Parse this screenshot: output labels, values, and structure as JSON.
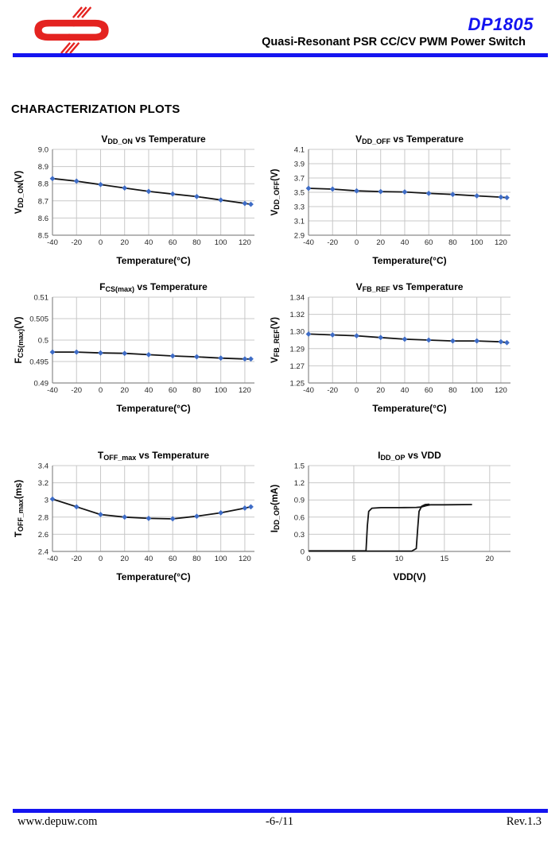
{
  "header": {
    "product": "DP1805",
    "subtitle": "Quasi-Resonant PSR CC/CV PWM Power Switch",
    "accent_color": "#1414f0",
    "logo_color": "#e42320"
  },
  "section_title": "CHARACTERIZATION PLOTS",
  "footer": {
    "website": "www.depuw.com",
    "page": "-6-/11",
    "revision": "Rev.1.3"
  },
  "chart_style": {
    "marker_color": "#3e6cc6",
    "line_color": "#141414",
    "grid_color": "#c8c8c8",
    "axis_color": "#8a8a8a",
    "tick_color": "#262626"
  },
  "chart_data": [
    {
      "type": "line",
      "name": "vdd-on-vs-temperature",
      "title": {
        "pre": "V",
        "sub": "DD_ON",
        "post": " vs Temperature"
      },
      "ylabel": {
        "pre": "V",
        "sub": "DD_ON",
        "post": "(V)"
      },
      "xlabel": "Temperature(°C)",
      "xlim": [
        -40,
        128
      ],
      "xticks": [
        -40,
        -20,
        0,
        20,
        40,
        60,
        80,
        100,
        120
      ],
      "xtick_labels": [
        "-40",
        "-20",
        "0",
        "20",
        "40",
        "60",
        "80",
        "100",
        "120"
      ],
      "yticks": [
        8.5,
        8.6,
        8.7,
        8.8,
        8.9,
        9.0
      ],
      "ytick_labels": [
        "8.5",
        "8.6",
        "8.7",
        "8.8",
        "8.9",
        "9.0"
      ],
      "x": [
        -40,
        -20,
        0,
        20,
        40,
        60,
        80,
        100,
        120,
        125
      ],
      "y": [
        8.83,
        8.815,
        8.795,
        8.775,
        8.755,
        8.74,
        8.725,
        8.705,
        8.685,
        8.68
      ],
      "markers": true
    },
    {
      "type": "line",
      "name": "vdd-off-vs-temperature",
      "title": {
        "pre": "V",
        "sub": "DD_OFF",
        "post": " vs Temperature"
      },
      "ylabel": {
        "pre": "V",
        "sub": "DD_OFF",
        "post": "(V)"
      },
      "xlabel": "Temperature(°C)",
      "xlim": [
        -40,
        128
      ],
      "xticks": [
        -40,
        -20,
        0,
        20,
        40,
        60,
        80,
        100,
        120
      ],
      "xtick_labels": [
        "-40",
        "-20",
        "0",
        "20",
        "40",
        "60",
        "80",
        "100",
        "120"
      ],
      "yticks": [
        2.9,
        3.1,
        3.3,
        3.5,
        3.7,
        3.9,
        4.1
      ],
      "ytick_labels": [
        "2.9",
        "3.1",
        "3.3",
        "3.5",
        "3.7",
        "3.9",
        "4.1"
      ],
      "x": [
        -40,
        -20,
        0,
        20,
        40,
        60,
        80,
        100,
        120,
        125
      ],
      "y": [
        3.555,
        3.545,
        3.52,
        3.51,
        3.505,
        3.485,
        3.47,
        3.45,
        3.432,
        3.425
      ],
      "markers": true
    },
    {
      "type": "line",
      "name": "fcs-max-vs-temperature",
      "title": {
        "pre": "F",
        "sub": "CS(max)",
        "post": " vs Temperature"
      },
      "ylabel": {
        "pre": "F",
        "sub": "CS(max)",
        "post": "(V)"
      },
      "xlabel": "Temperature(°C)",
      "xlim": [
        -40,
        128
      ],
      "xticks": [
        -40,
        -20,
        0,
        20,
        40,
        60,
        80,
        100,
        120
      ],
      "xtick_labels": [
        "-40",
        "-20",
        "0",
        "20",
        "40",
        "60",
        "80",
        "100",
        "120"
      ],
      "yticks": [
        0.49,
        0.495,
        0.5,
        0.505,
        0.51
      ],
      "ytick_labels": [
        "0.49",
        "0.495",
        "0.5",
        "0.505",
        "0.51"
      ],
      "x": [
        -40,
        -20,
        0,
        20,
        40,
        60,
        80,
        100,
        120,
        125
      ],
      "y": [
        0.4972,
        0.4972,
        0.497,
        0.4969,
        0.4966,
        0.4963,
        0.4961,
        0.4958,
        0.4956,
        0.4956
      ],
      "markers": true
    },
    {
      "type": "line",
      "name": "vfb-ref-vs-temperature",
      "title": {
        "pre": "V",
        "sub": "FB_REF",
        "post": " vs Temperature"
      },
      "ylabel": {
        "pre": "V",
        "sub": "FB_REF",
        "post": "(V)"
      },
      "xlabel": "Temperature(°C)",
      "xlim": [
        -40,
        128
      ],
      "xticks": [
        -40,
        -20,
        0,
        20,
        40,
        60,
        80,
        100,
        120
      ],
      "xtick_labels": [
        "-40",
        "-20",
        "0",
        "20",
        "40",
        "60",
        "80",
        "100",
        "120"
      ],
      "yticks": [
        1.25,
        1.27,
        1.29,
        1.3,
        1.32,
        1.34
      ],
      "ytick_labels": [
        "1.25",
        "1.27",
        "1.29",
        "1.30",
        "1.32",
        "1.34"
      ],
      "x": [
        -40,
        -20,
        0,
        20,
        40,
        60,
        80,
        100,
        120,
        125
      ],
      "y": [
        1.2985,
        1.298,
        1.2975,
        1.2965,
        1.2955,
        1.295,
        1.2945,
        1.2945,
        1.294,
        1.2935
      ],
      "markers": true
    },
    {
      "type": "line",
      "name": "toff-max-vs-temperature",
      "title": {
        "pre": "T",
        "sub": "OFF_max",
        "post": " vs Temperature"
      },
      "ylabel": {
        "pre": "T",
        "sub": "OFF_max",
        "post": "(ms)"
      },
      "xlabel": "Temperature(°C)",
      "xlim": [
        -40,
        128
      ],
      "xticks": [
        -40,
        -20,
        0,
        20,
        40,
        60,
        80,
        100,
        120
      ],
      "xtick_labels": [
        "-40",
        "-20",
        "0",
        "20",
        "40",
        "60",
        "80",
        "100",
        "120"
      ],
      "yticks": [
        2.4,
        2.6,
        2.8,
        3.0,
        3.2,
        3.4
      ],
      "ytick_labels": [
        "2.4",
        "2.6",
        "2.8",
        "3",
        "3.2",
        "3.4"
      ],
      "x": [
        -40,
        -20,
        0,
        20,
        40,
        60,
        80,
        100,
        120,
        125
      ],
      "y": [
        3.01,
        2.92,
        2.83,
        2.8,
        2.785,
        2.78,
        2.81,
        2.85,
        2.905,
        2.92
      ],
      "markers": true
    },
    {
      "type": "line",
      "name": "idd-op-vs-vdd",
      "title": {
        "pre": "I",
        "sub": "DD_OP",
        "post": " vs VDD"
      },
      "ylabel": {
        "pre": "I",
        "sub": "DD_OP",
        "post": "(mA)"
      },
      "xlabel": "VDD(V)",
      "xlim": [
        0,
        22.3
      ],
      "xticks": [
        0,
        5,
        10,
        15,
        20
      ],
      "xtick_labels": [
        "0",
        "5",
        "10",
        "15",
        "20"
      ],
      "yticks": [
        0,
        0.3,
        0.6,
        0.9,
        1.2,
        1.5
      ],
      "ytick_labels": [
        "0",
        "0.3",
        "0.6",
        "0.9",
        "1.2",
        "1.5"
      ],
      "series": [
        {
          "name": "startup-rise-branch",
          "x": [
            0.1,
            6.35,
            6.5,
            6.65,
            7.0,
            8.0,
            10.0,
            11.9,
            12.4,
            13.0,
            13.5,
            15.0,
            18.0
          ],
          "y": [
            0.01,
            0.01,
            0.45,
            0.7,
            0.755,
            0.765,
            0.765,
            0.77,
            0.775,
            0.8,
            0.815,
            0.815,
            0.82
          ]
        },
        {
          "name": "hysteresis-branch",
          "x": [
            0.1,
            11.4,
            11.9,
            12.05,
            12.2,
            12.5,
            12.9,
            13.3
          ],
          "y": [
            0.005,
            0.005,
            0.05,
            0.4,
            0.7,
            0.79,
            0.82,
            0.825
          ]
        }
      ],
      "markers": false
    }
  ]
}
